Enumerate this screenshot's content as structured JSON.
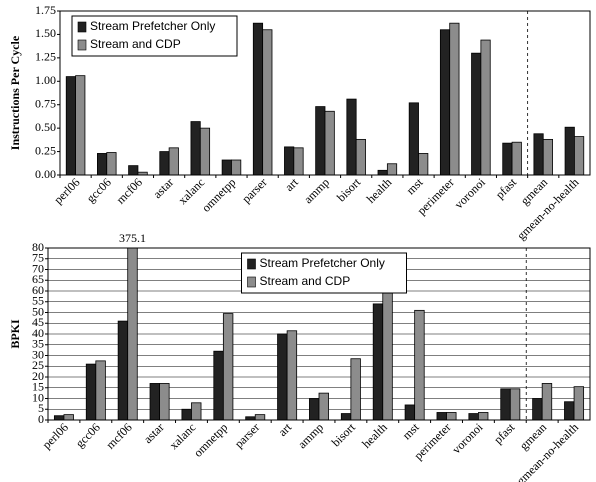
{
  "chart_data": [
    {
      "type": "bar",
      "ylabel": "Instructions Per Cycle",
      "categories": [
        "perl06",
        "gcc06",
        "mcf06",
        "astar",
        "xalanc",
        "omnetpp",
        "parser",
        "art",
        "ammp",
        "bisort",
        "health",
        "mst",
        "perimeter",
        "voronoi",
        "pfast",
        "gmean",
        "gmean-no-health"
      ],
      "series": [
        {
          "name": "Stream Prefetcher Only",
          "color": "#222222",
          "values": [
            1.05,
            0.23,
            0.1,
            0.25,
            0.57,
            0.16,
            1.62,
            0.3,
            0.73,
            0.81,
            0.05,
            0.77,
            1.55,
            1.3,
            0.34,
            0.44,
            0.51
          ]
        },
        {
          "name": "Stream and CDP",
          "color": "#8c8c8c",
          "values": [
            1.06,
            0.24,
            0.03,
            0.29,
            0.5,
            0.16,
            1.55,
            0.29,
            0.68,
            0.38,
            0.12,
            0.23,
            1.62,
            1.44,
            0.35,
            0.38,
            0.41
          ]
        }
      ],
      "ylim": [
        0,
        1.75
      ],
      "yticks": [
        {
          "value": 0,
          "label": "0.00"
        },
        0.25,
        {
          "value": 0.5,
          "label": "0.50"
        },
        0.75,
        {
          "value": 1,
          "label": "1.00"
        },
        1.25,
        {
          "value": 1.5,
          "label": "1.50"
        },
        1.75
      ],
      "grid": false,
      "legend": "upper left"
    },
    {
      "type": "bar",
      "ylabel": "BPKI",
      "categories": [
        "perl06",
        "gcc06",
        "mcf06",
        "astar",
        "xalanc",
        "omnetpp",
        "parser",
        "art",
        "ammp",
        "bisort",
        "health",
        "mst",
        "perimeter",
        "voronoi",
        "pfast",
        "gmean",
        "gmean-no-health"
      ],
      "series": [
        {
          "name": "Stream Prefetcher Only",
          "color": "#222222",
          "values": [
            2,
            26,
            46,
            17,
            5,
            32,
            1.5,
            40,
            10,
            3,
            54,
            7,
            3.5,
            3,
            14.5,
            10,
            8.5
          ]
        },
        {
          "name": "Stream and CDP",
          "color": "#8c8c8c",
          "values": [
            2.5,
            27.5,
            375.1,
            17,
            8,
            49.5,
            2.5,
            41.5,
            12.5,
            28.5,
            59,
            51,
            3.5,
            3.5,
            14.5,
            17,
            15.5
          ],
          "value_labels": [
            null,
            null,
            "375.1",
            null,
            null,
            null,
            null,
            null,
            null,
            null,
            null,
            null,
            null,
            null,
            null,
            null,
            null
          ]
        }
      ],
      "ylim": [
        0,
        80
      ],
      "yticks": [
        0,
        5,
        10,
        15,
        20,
        25,
        30,
        35,
        40,
        45,
        50,
        55,
        60,
        65,
        70,
        75,
        80
      ],
      "grid": true,
      "legend": "upper center"
    }
  ]
}
